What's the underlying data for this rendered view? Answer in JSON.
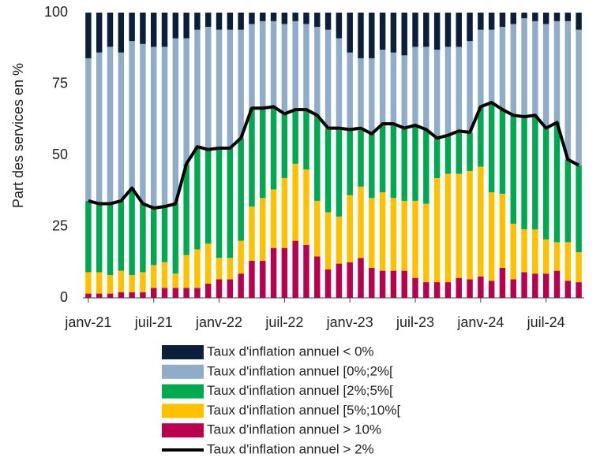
{
  "chart_data": {
    "type": "bar",
    "stacked": true,
    "y_label": "Part des services en %",
    "categories": [
      "janv-21",
      null,
      null,
      null,
      null,
      null,
      "juil-21",
      null,
      null,
      null,
      null,
      null,
      "janv-22",
      null,
      null,
      null,
      null,
      null,
      "juil-22",
      null,
      null,
      null,
      null,
      null,
      "janv-23",
      null,
      null,
      null,
      null,
      null,
      "juil-23",
      null,
      null,
      null,
      null,
      null,
      "janv-24",
      null,
      null,
      null,
      null,
      null,
      "juil-24",
      null,
      null,
      null
    ],
    "ylim": [
      0,
      100
    ],
    "yticks": [
      0,
      25,
      50,
      75,
      100
    ],
    "grid": false,
    "series": [
      {
        "name": "Taux d'inflation annuel < 0%",
        "color": "#0b1f3a",
        "values": [
          16,
          14,
          12,
          14,
          10,
          11,
          12,
          12,
          9,
          9,
          6,
          5,
          6,
          6,
          6,
          4,
          3,
          3,
          4,
          3,
          4,
          5,
          6,
          9,
          14,
          16,
          16,
          13,
          14,
          15,
          12,
          12,
          13,
          12,
          12,
          10,
          6,
          6,
          5,
          4,
          2,
          3,
          4,
          3,
          3,
          6
        ]
      },
      {
        "name": "Taux d'inflation annuel [0%;2%[",
        "color": "#8fadc8",
        "values": [
          50,
          53,
          55,
          52,
          51.5,
          56,
          56.5,
          56,
          58,
          44,
          41,
          43,
          41.5,
          41.5,
          38,
          29.5,
          30.5,
          30,
          31.5,
          31,
          30,
          31,
          34.5,
          31.5,
          27,
          24.5,
          26.5,
          26,
          25,
          25.5,
          27.5,
          29,
          31,
          31,
          29.5,
          32,
          27,
          25.5,
          29,
          32,
          34.5,
          33,
          36.5,
          35.5,
          48.5,
          47.5
        ]
      },
      {
        "name": "Taux d'inflation annuel [2%;5%[",
        "color": "#00a84f",
        "values": [
          25,
          24,
          25,
          24.5,
          30.5,
          24,
          20,
          19.5,
          24.5,
          32,
          36,
          33,
          38.5,
          38.5,
          36,
          34.5,
          31.5,
          29,
          22.5,
          19,
          21,
          30,
          29.5,
          31,
          23,
          20.5,
          22.5,
          24,
          26,
          25.5,
          26.5,
          26,
          14,
          13.5,
          15,
          13.5,
          21,
          31.5,
          29.5,
          38,
          39.5,
          40,
          39,
          42,
          29,
          30.5
        ]
      },
      {
        "name": "Taux d'inflation annuel [5%;10%[",
        "color": "#ffc000",
        "values": [
          7.5,
          7.5,
          6.5,
          7.5,
          6,
          7,
          8,
          9,
          5,
          11.5,
          13.5,
          14,
          7.5,
          7.5,
          11.5,
          19,
          22,
          20.5,
          24.5,
          27,
          26.5,
          19.5,
          20,
          16.5,
          23.5,
          25,
          24.5,
          27.5,
          25.5,
          24.5,
          27,
          27.5,
          36.5,
          38,
          36.5,
          38,
          38.5,
          31,
          26,
          19.5,
          15,
          15.5,
          12,
          10,
          13.5,
          10.5
        ]
      },
      {
        "name": "Taux d'inflation annuel > 10%",
        "color": "#b8004f",
        "values": [
          1.5,
          1.5,
          1.5,
          2,
          2,
          2,
          3.5,
          3.5,
          3.5,
          3.5,
          3.5,
          5,
          6.5,
          6.5,
          8.5,
          13,
          13,
          17.5,
          17.5,
          20,
          18.5,
          14.5,
          10,
          12,
          12.5,
          14,
          10.5,
          9.5,
          9.5,
          9.5,
          7,
          5.5,
          5.5,
          5.5,
          7,
          6.5,
          7.5,
          6,
          10.5,
          6.5,
          9,
          8.5,
          8.5,
          9.5,
          6,
          5.5
        ]
      },
      {
        "name": "Taux d'inflation annuel > 2%",
        "color": "#000000",
        "type": "line",
        "values": [
          34,
          33,
          33,
          34,
          38.5,
          33,
          31.5,
          32,
          33,
          47,
          53,
          52,
          52.5,
          52.5,
          56,
          66.5,
          66.5,
          67,
          64.5,
          66,
          66,
          64,
          59.5,
          59.5,
          59,
          59.5,
          57.5,
          61,
          61,
          59.5,
          60.5,
          59,
          56,
          57,
          58.5,
          58,
          67,
          68.5,
          66,
          64,
          63.5,
          64,
          59.5,
          61.5,
          48.5,
          46.5
        ]
      }
    ]
  }
}
